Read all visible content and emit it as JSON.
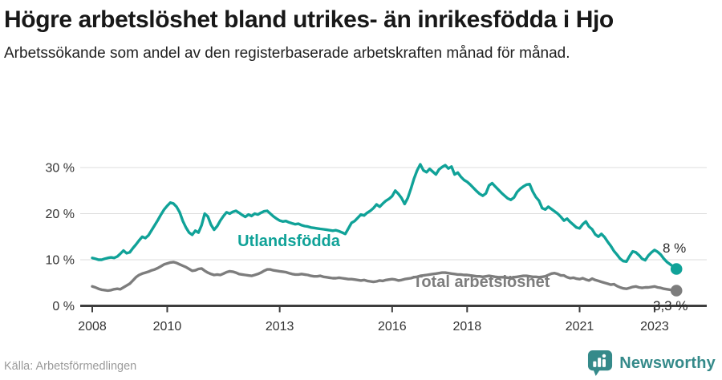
{
  "header": {
    "title": "Högre arbetslöshet bland utrikes- än inrikesfödda i Hjo",
    "subtitle": "Arbetssökande som andel av den registerbaserade arbetskraften månad för månad."
  },
  "footer": {
    "source": "Källa: Arbetsförmedlingen",
    "brand": "Newsworthy"
  },
  "colors": {
    "series_foreign": "#10a298",
    "series_total": "#7d7d7d",
    "grid": "#dcdcdc",
    "axis": "#3d3d3d",
    "brand_teal": "#358a8a"
  },
  "chart_data": {
    "type": "line",
    "title": "Högre arbetslöshet bland utrikes- än inrikesfödda i Hjo",
    "xlabel": "",
    "ylabel": "",
    "frequency": "monthly",
    "x_start_year": 2008,
    "x_ticks": [
      2008,
      2010,
      2013,
      2016,
      2018,
      2021,
      2023
    ],
    "x_tick_labels": [
      "2008",
      "2010",
      "2013",
      "2016",
      "2018",
      "2021",
      "2023"
    ],
    "y_ticks": [
      0,
      10,
      20,
      30
    ],
    "y_tick_labels": [
      "0 %",
      "10 %",
      "20 %",
      "30 %"
    ],
    "ylim": [
      0,
      32
    ],
    "grid": true,
    "legend_position": "inline-labels",
    "series": [
      {
        "name": "Utlandsfödda",
        "color": "#10a298",
        "end_label": "8 %",
        "values": [
          10.4,
          10.2,
          10.0,
          10.0,
          10.2,
          10.4,
          10.5,
          10.4,
          10.7,
          11.3,
          12.0,
          11.4,
          11.6,
          12.5,
          13.3,
          14.2,
          15.0,
          14.7,
          15.3,
          16.4,
          17.5,
          18.6,
          19.8,
          20.9,
          21.7,
          22.4,
          22.2,
          21.5,
          20.3,
          18.4,
          17.0,
          15.9,
          15.4,
          16.3,
          15.9,
          17.5,
          20.0,
          19.4,
          17.6,
          16.5,
          17.3,
          18.5,
          19.5,
          20.3,
          20.0,
          20.4,
          20.6,
          20.2,
          19.7,
          19.3,
          19.8,
          19.5,
          20.0,
          19.8,
          20.2,
          20.5,
          20.6,
          20.0,
          19.4,
          18.9,
          18.5,
          18.3,
          18.4,
          18.1,
          17.9,
          17.7,
          17.8,
          17.5,
          17.3,
          17.2,
          17.0,
          16.9,
          16.8,
          16.7,
          16.6,
          16.5,
          16.4,
          16.3,
          16.4,
          16.2,
          15.9,
          15.6,
          16.8,
          18.0,
          18.4,
          19.1,
          19.8,
          19.6,
          20.2,
          20.6,
          21.2,
          22.0,
          21.5,
          22.2,
          22.8,
          23.2,
          23.8,
          25.0,
          24.3,
          23.4,
          22.1,
          23.4,
          25.4,
          27.6,
          29.4,
          30.7,
          29.4,
          29.0,
          29.7,
          29.1,
          28.5,
          29.6,
          30.1,
          30.5,
          29.8,
          30.2,
          28.5,
          28.9,
          28.0,
          27.3,
          26.9,
          26.3,
          25.6,
          24.9,
          24.3,
          23.9,
          24.4,
          26.1,
          26.6,
          25.9,
          25.2,
          24.5,
          23.9,
          23.3,
          23.0,
          23.5,
          24.7,
          25.4,
          25.9,
          26.3,
          26.4,
          24.8,
          23.6,
          22.8,
          21.2,
          20.9,
          21.5,
          21.0,
          20.5,
          20.0,
          19.3,
          18.5,
          18.9,
          18.2,
          17.6,
          17.0,
          16.8,
          17.7,
          18.3,
          17.2,
          16.6,
          15.5,
          15.0,
          15.6,
          14.9,
          13.9,
          13.0,
          11.9,
          11.1,
          10.2,
          9.7,
          9.6,
          10.8,
          11.8,
          11.6,
          11.0,
          10.2,
          9.9,
          10.9,
          11.6,
          12.1,
          11.7,
          11.1,
          10.2,
          9.5,
          9.0,
          8.5,
          8.0
        ]
      },
      {
        "name": "Total arbetslöshet",
        "color": "#7d7d7d",
        "end_label": "3,3 %",
        "values": [
          4.2,
          4.0,
          3.7,
          3.5,
          3.4,
          3.3,
          3.4,
          3.6,
          3.7,
          3.6,
          4.0,
          4.4,
          4.8,
          5.5,
          6.2,
          6.7,
          7.0,
          7.2,
          7.4,
          7.7,
          7.9,
          8.2,
          8.6,
          9.0,
          9.2,
          9.4,
          9.5,
          9.3,
          9.0,
          8.7,
          8.4,
          8.0,
          7.6,
          7.7,
          8.0,
          8.1,
          7.6,
          7.2,
          6.9,
          6.7,
          6.8,
          6.7,
          7.0,
          7.3,
          7.5,
          7.4,
          7.2,
          6.9,
          6.8,
          6.7,
          6.6,
          6.5,
          6.7,
          6.9,
          7.2,
          7.6,
          7.9,
          7.9,
          7.7,
          7.6,
          7.5,
          7.4,
          7.3,
          7.1,
          6.9,
          6.8,
          6.8,
          6.9,
          6.8,
          6.7,
          6.5,
          6.4,
          6.4,
          6.5,
          6.3,
          6.2,
          6.1,
          6.0,
          6.0,
          6.1,
          6.0,
          5.9,
          5.8,
          5.8,
          5.7,
          5.6,
          5.5,
          5.6,
          5.4,
          5.3,
          5.2,
          5.3,
          5.5,
          5.4,
          5.6,
          5.7,
          5.8,
          5.7,
          5.5,
          5.6,
          5.8,
          5.9,
          6.0,
          6.2,
          6.3,
          6.5,
          6.6,
          6.7,
          6.8,
          6.9,
          7.0,
          7.1,
          7.2,
          7.2,
          7.1,
          7.0,
          6.9,
          6.8,
          6.8,
          6.7,
          6.7,
          6.6,
          6.5,
          6.4,
          6.4,
          6.3,
          6.4,
          6.5,
          6.4,
          6.3,
          6.2,
          6.2,
          6.2,
          6.1,
          6.1,
          6.2,
          6.3,
          6.4,
          6.5,
          6.5,
          6.4,
          6.3,
          6.3,
          6.2,
          6.3,
          6.4,
          6.7,
          7.0,
          7.1,
          6.9,
          6.6,
          6.6,
          6.2,
          6.0,
          6.1,
          5.9,
          5.8,
          6.0,
          5.7,
          5.5,
          5.9,
          5.6,
          5.4,
          5.2,
          5.0,
          4.8,
          4.6,
          4.7,
          4.3,
          4.0,
          3.8,
          3.7,
          3.9,
          4.1,
          4.2,
          4.0,
          3.9,
          4.0,
          4.0,
          4.1,
          4.2,
          4.0,
          3.9,
          3.7,
          3.6,
          3.5,
          3.4,
          3.3
        ]
      }
    ]
  }
}
